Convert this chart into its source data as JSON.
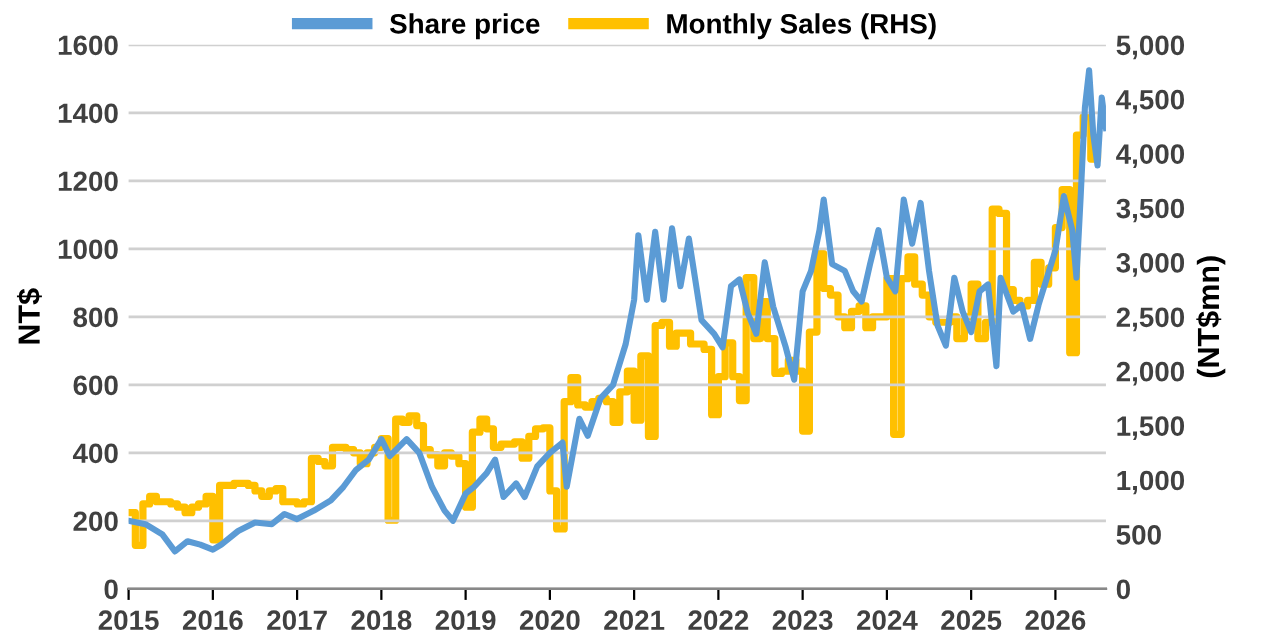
{
  "chart_data": {
    "type": "line",
    "ylabel": "NT$",
    "y2label": "(NT$mn)",
    "legend": "top",
    "grid": "y",
    "marker": "none",
    "line_style": "solid",
    "xlim": [
      2015,
      2026.6
    ],
    "xticks": [
      2015,
      2016,
      2017,
      2018,
      2019,
      2020,
      2021,
      2022,
      2023,
      2024,
      2025,
      2026
    ],
    "ylim": [
      0,
      1600
    ],
    "yticks": [
      0,
      200,
      400,
      600,
      800,
      1000,
      1200,
      1400,
      1600
    ],
    "y2lim": [
      0,
      5000
    ],
    "y2ticks": [
      0,
      500,
      {
        "value": 1000,
        "label": "1,000"
      },
      {
        "value": 1500,
        "label": "1,500"
      },
      {
        "value": 2000,
        "label": "2,000"
      },
      {
        "value": 2500,
        "label": "2,500"
      },
      {
        "value": 3000,
        "label": "3,000"
      },
      {
        "value": 3500,
        "label": "3,500"
      },
      {
        "value": 4000,
        "label": "4,000"
      },
      {
        "value": 4500,
        "label": "4,500"
      },
      {
        "value": 5000,
        "label": "5,000"
      }
    ],
    "series": [
      {
        "name": "Share price",
        "color": "#5b9bd5",
        "x": [
          2015.0,
          2015.2,
          2015.4,
          2015.55,
          2015.7,
          2015.85,
          2016.0,
          2016.1,
          2016.3,
          2016.5,
          2016.7,
          2016.85,
          2017.0,
          2017.2,
          2017.4,
          2017.55,
          2017.7,
          2017.85,
          2018.0,
          2018.1,
          2018.3,
          2018.45,
          2018.6,
          2018.75,
          2018.85,
          2019.0,
          2019.1,
          2019.25,
          2019.35,
          2019.45,
          2019.6,
          2019.7,
          2019.85,
          2020.0,
          2020.15,
          2020.2,
          2020.35,
          2020.45,
          2020.6,
          2020.75,
          2020.9,
          2021.0,
          2021.05,
          2021.15,
          2021.25,
          2021.35,
          2021.45,
          2021.55,
          2021.65,
          2021.8,
          2021.95,
          2022.05,
          2022.15,
          2022.25,
          2022.35,
          2022.45,
          2022.55,
          2022.65,
          2022.8,
          2022.9,
          2023.0,
          2023.1,
          2023.2,
          2023.25,
          2023.35,
          2023.5,
          2023.6,
          2023.7,
          2023.8,
          2023.9,
          2024.0,
          2024.1,
          2024.2,
          2024.3,
          2024.4,
          2024.5,
          2024.6,
          2024.7,
          2024.8,
          2024.9,
          2025.0,
          2025.1,
          2025.2,
          2025.3,
          2025.35,
          2025.5,
          2025.6,
          2025.7,
          2025.8,
          2025.9,
          2026.0,
          2026.1,
          2026.2,
          2026.25,
          2026.3,
          2026.35,
          2026.4,
          2026.45,
          2026.5,
          2026.55,
          2026.6
        ],
        "values": [
          200,
          190,
          160,
          110,
          140,
          130,
          115,
          130,
          170,
          195,
          190,
          220,
          205,
          230,
          260,
          300,
          350,
          380,
          440,
          390,
          440,
          400,
          300,
          230,
          200,
          280,
          300,
          340,
          380,
          270,
          310,
          270,
          360,
          400,
          430,
          300,
          500,
          450,
          560,
          600,
          720,
          850,
          1040,
          850,
          1050,
          850,
          1060,
          890,
          1030,
          790,
          750,
          710,
          890,
          910,
          810,
          750,
          960,
          830,
          710,
          615,
          875,
          935,
          1055,
          1145,
          955,
          935,
          875,
          845,
          955,
          1055,
          915,
          875,
          1145,
          1015,
          1135,
          935,
          775,
          715,
          915,
          815,
          755,
          875,
          895,
          655,
          915,
          815,
          835,
          735,
          835,
          915,
          995,
          1155,
          1055,
          915,
          1155,
          1415,
          1525,
          1335,
          1245,
          1445,
          1355
        ]
      },
      {
        "name": "Monthly Sales (RHS)",
        "type": "step",
        "axis": "y2",
        "color": "#ffc000",
        "x": [
          2015.0,
          2015.08,
          2015.17,
          2015.25,
          2015.33,
          2015.42,
          2015.5,
          2015.58,
          2015.67,
          2015.75,
          2015.83,
          2015.92,
          2016.0,
          2016.08,
          2016.17,
          2016.25,
          2016.33,
          2016.42,
          2016.5,
          2016.58,
          2016.67,
          2016.75,
          2016.83,
          2016.92,
          2017.0,
          2017.08,
          2017.17,
          2017.25,
          2017.33,
          2017.42,
          2017.5,
          2017.58,
          2017.67,
          2017.75,
          2017.83,
          2017.92,
          2018.0,
          2018.08,
          2018.17,
          2018.25,
          2018.33,
          2018.42,
          2018.5,
          2018.58,
          2018.67,
          2018.75,
          2018.83,
          2018.92,
          2019.0,
          2019.08,
          2019.17,
          2019.25,
          2019.33,
          2019.42,
          2019.5,
          2019.58,
          2019.67,
          2019.75,
          2019.83,
          2019.92,
          2020.0,
          2020.08,
          2020.17,
          2020.25,
          2020.33,
          2020.42,
          2020.5,
          2020.58,
          2020.67,
          2020.75,
          2020.83,
          2020.92,
          2021.0,
          2021.08,
          2021.17,
          2021.25,
          2021.33,
          2021.42,
          2021.5,
          2021.58,
          2021.67,
          2021.75,
          2021.83,
          2021.92,
          2022.0,
          2022.08,
          2022.17,
          2022.25,
          2022.33,
          2022.42,
          2022.5,
          2022.58,
          2022.67,
          2022.75,
          2022.83,
          2022.92,
          2023.0,
          2023.08,
          2023.17,
          2023.25,
          2023.33,
          2023.42,
          2023.5,
          2023.58,
          2023.67,
          2023.75,
          2023.83,
          2023.92,
          2024.0,
          2024.08,
          2024.17,
          2024.25,
          2024.33,
          2024.42,
          2024.5,
          2024.58,
          2024.67,
          2024.75,
          2024.83,
          2024.92,
          2025.0,
          2025.08,
          2025.17,
          2025.25,
          2025.33,
          2025.42,
          2025.5,
          2025.58,
          2025.67,
          2025.75,
          2025.83,
          2025.92,
          2026.0,
          2026.08,
          2026.17,
          2026.25,
          2026.33,
          2026.42,
          2026.5
        ],
        "values": [
          700,
          400,
          780,
          850,
          800,
          800,
          780,
          750,
          700,
          750,
          780,
          850,
          450,
          950,
          950,
          970,
          970,
          950,
          900,
          850,
          900,
          920,
          800,
          800,
          780,
          800,
          1200,
          1170,
          1130,
          1300,
          1300,
          1280,
          1250,
          1150,
          1250,
          1300,
          1380,
          630,
          1560,
          1530,
          1590,
          1500,
          1280,
          1230,
          1130,
          1250,
          1220,
          1150,
          750,
          1440,
          1560,
          1470,
          1300,
          1330,
          1330,
          1350,
          1200,
          1400,
          1470,
          1480,
          900,
          550,
          1720,
          1940,
          1690,
          1670,
          1720,
          1750,
          1720,
          1530,
          1810,
          2000,
          1550,
          2140,
          1400,
          2420,
          2450,
          2230,
          2350,
          2350,
          2250,
          2250,
          2200,
          1600,
          1950,
          2260,
          1950,
          1730,
          2860,
          2300,
          2640,
          2300,
          1980,
          2000,
          2100,
          2000,
          1450,
          2360,
          3080,
          2760,
          2700,
          2500,
          2400,
          2550,
          2600,
          2400,
          2500,
          2500,
          2850,
          1420,
          2850,
          3050,
          2800,
          2700,
          2500,
          2450,
          2450,
          2500,
          2300,
          2500,
          2800,
          2300,
          2450,
          3490,
          3450,
          2750,
          2650,
          2600,
          2650,
          3000,
          2800,
          2950,
          3320,
          3670,
          2170,
          4170,
          4340,
          3950,
          4000
        ]
      }
    ]
  }
}
